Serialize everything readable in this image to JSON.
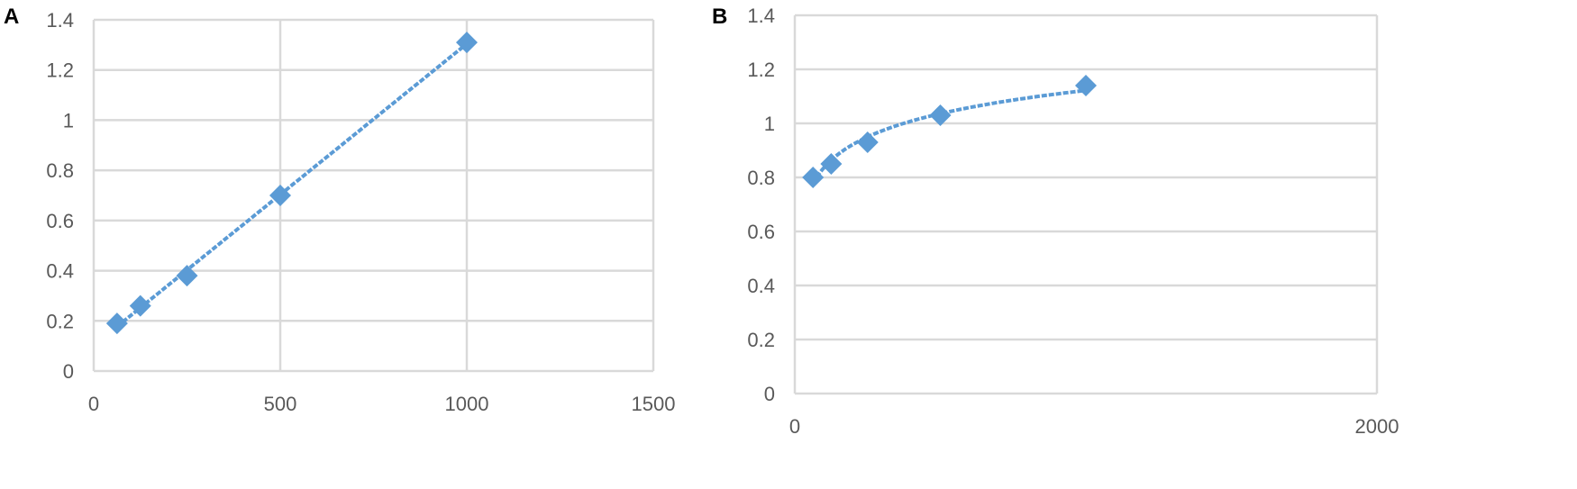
{
  "chart_data": [
    {
      "panel_label": "A",
      "type": "scatter",
      "trendline": "linear",
      "x": [
        62.5,
        125,
        250,
        500,
        1000
      ],
      "y": [
        0.19,
        0.26,
        0.38,
        0.7,
        1.31
      ],
      "xlim": [
        0,
        1500
      ],
      "ylim": [
        0,
        1.4
      ],
      "xticks": [
        "0",
        "500",
        "1000",
        "1500"
      ],
      "yticks": [
        "0",
        "0.2",
        "0.4",
        "0.6",
        "0.8",
        "1",
        "1.2",
        "1.4"
      ],
      "grid": true,
      "marker": "diamond",
      "color": "#5b9bd5"
    },
    {
      "panel_label": "B",
      "type": "scatter",
      "trendline": "logarithmic",
      "x": [
        62.5,
        125,
        250,
        500,
        1000
      ],
      "y": [
        0.8,
        0.85,
        0.93,
        1.03,
        1.14
      ],
      "xlim": [
        0,
        2000
      ],
      "ylim": [
        0,
        1.4
      ],
      "xticks": [
        "0",
        "2000"
      ],
      "yticks": [
        "0",
        "0.2",
        "0.4",
        "0.6",
        "0.8",
        "1",
        "1.2",
        "1.4"
      ],
      "grid": true,
      "marker": "diamond",
      "color": "#5b9bd5"
    }
  ]
}
